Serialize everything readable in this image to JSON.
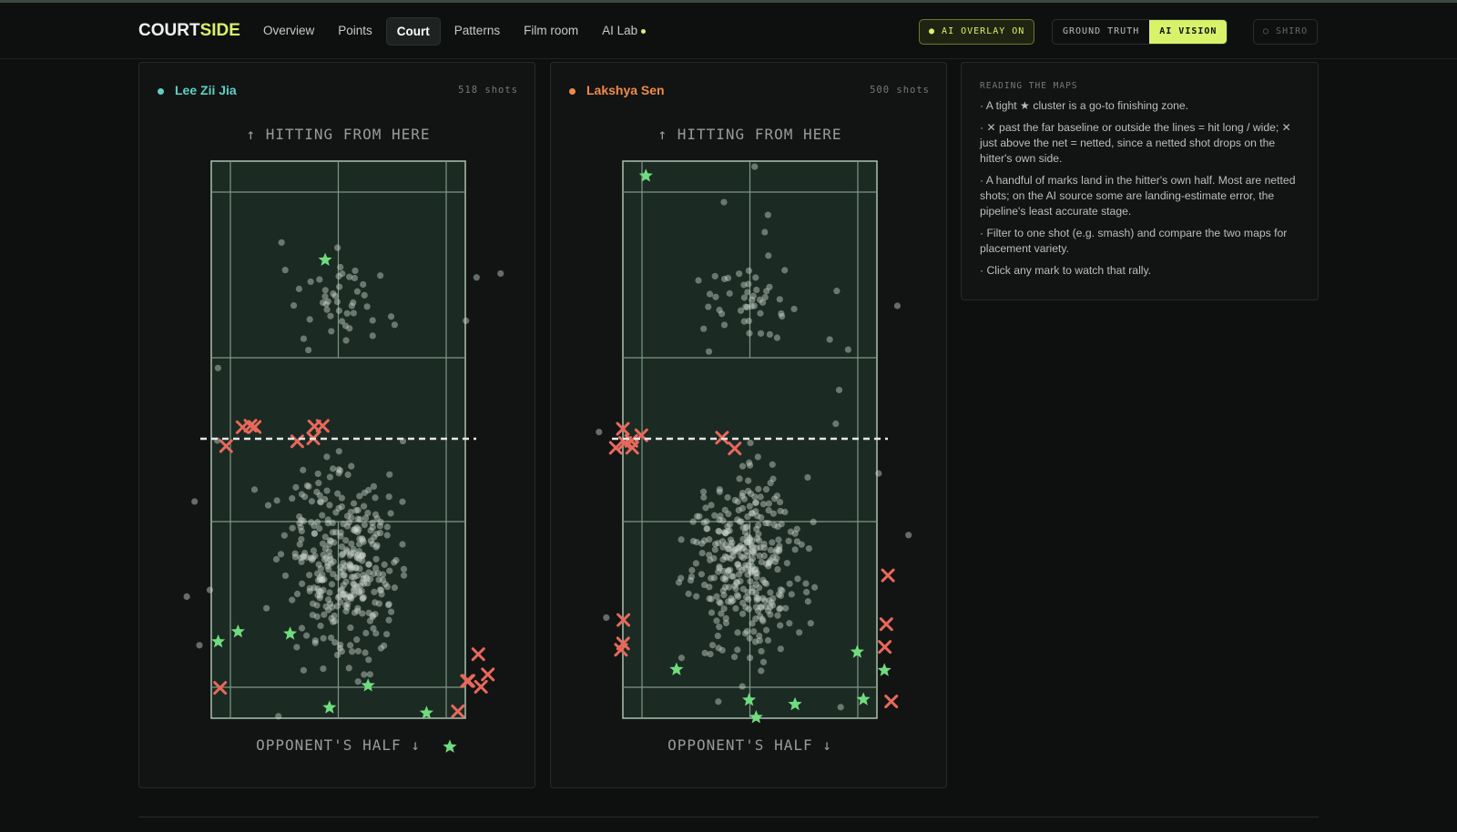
{
  "nav": {
    "brand_main": "COURT",
    "brand_accent": "SIDE",
    "items": [
      "Overview",
      "Points",
      "Court",
      "Patterns",
      "Film room",
      "AI Lab"
    ],
    "active": "Court",
    "overlay": "AI OVERLAY ON",
    "sources": [
      "GROUND TRUTH",
      "AI VISION"
    ],
    "active_source": "AI VISION",
    "extra": "SHIRO"
  },
  "panels": [
    {
      "player": "Lee Zii Jia",
      "shots": "518 shots",
      "color": "#5fd0c4",
      "top_label": "↑ HITTING FROM HERE",
      "bottom_label": "OPPONENT'S HALF ↓"
    },
    {
      "player": "Lakshya Sen",
      "shots": "500 shots",
      "color": "#f08a4b",
      "top_label": "↑ HITTING FROM HERE",
      "bottom_label": "OPPONENT'S HALF ↓"
    }
  ],
  "notes": {
    "title": "READING THE MAPS",
    "items": [
      "· A tight ★ cluster is a go-to finishing zone.",
      "· ✕ past the far baseline or outside the lines = hit long / wide; ✕ just above the net = netted, since a netted shot drops on the hitter's own side.",
      "· A handful of marks land in the hitter's own half. Most are netted shots; on the AI source some are landing-estimate error, the pipeline's least accurate stage.",
      "· Filter to one shot (e.g. smash) and compare the two maps for placement variety.",
      "· Click any mark to watch that rally."
    ]
  }
}
